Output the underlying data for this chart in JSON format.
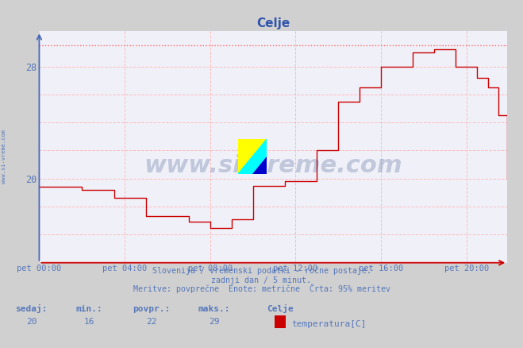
{
  "title": "Celje",
  "bg_color": "#d0d0d0",
  "plot_bg_color": "#f0f0f8",
  "line_color": "#cc0000",
  "dotted_line_color": "#ff6666",
  "grid_dashed_color": "#ffbbbb",
  "axis_color_x": "#cc0000",
  "axis_color_y": "#4466bb",
  "text_color": "#5577bb",
  "title_color": "#3355aa",
  "watermark": "www.si-vreme.com",
  "watermark_color": "#1a3a7a",
  "ylabel_side": "www.si-vreme.com",
  "subtitle1": "Slovenija / vremenski podatki - ročne postaje.",
  "subtitle2": "zadnji dan / 5 minut.",
  "subtitle3": "Meritve: povprečne  Enote: metrične  Črta: 95% meritev",
  "footer_labels": [
    "sedaj:",
    "min.:",
    "povpr.:",
    "maks.:",
    "Celje"
  ],
  "footer_values": [
    "20",
    "16",
    "22",
    "29"
  ],
  "footer_legend": "temperatura[C]",
  "xticklabels": [
    "pet 00:00",
    "pet 04:00",
    "pet 08:00",
    "pet 12:00",
    "pet 16:00",
    "pet 20:00"
  ],
  "xtick_positions": [
    0,
    48,
    96,
    144,
    192,
    240
  ],
  "ymin": 14.0,
  "ymax": 30.5,
  "max_line_y": 29.5,
  "xmax": 263,
  "time_x": [
    0,
    12,
    24,
    36,
    42,
    54,
    60,
    72,
    84,
    90,
    96,
    102,
    108,
    114,
    120,
    132,
    138,
    144,
    156,
    162,
    168,
    174,
    180,
    186,
    192,
    204,
    210,
    216,
    222,
    228,
    234,
    240,
    246,
    252,
    258,
    263
  ],
  "temp_y": [
    19.4,
    19.4,
    19.2,
    19.2,
    18.6,
    18.6,
    17.3,
    17.3,
    16.9,
    16.9,
    16.5,
    16.5,
    17.1,
    17.1,
    19.5,
    19.5,
    19.8,
    19.8,
    22.0,
    22.0,
    25.5,
    25.5,
    26.5,
    26.5,
    28.0,
    28.0,
    29.0,
    29.0,
    29.2,
    29.2,
    28.0,
    28.0,
    27.2,
    26.5,
    24.5,
    20.0
  ]
}
